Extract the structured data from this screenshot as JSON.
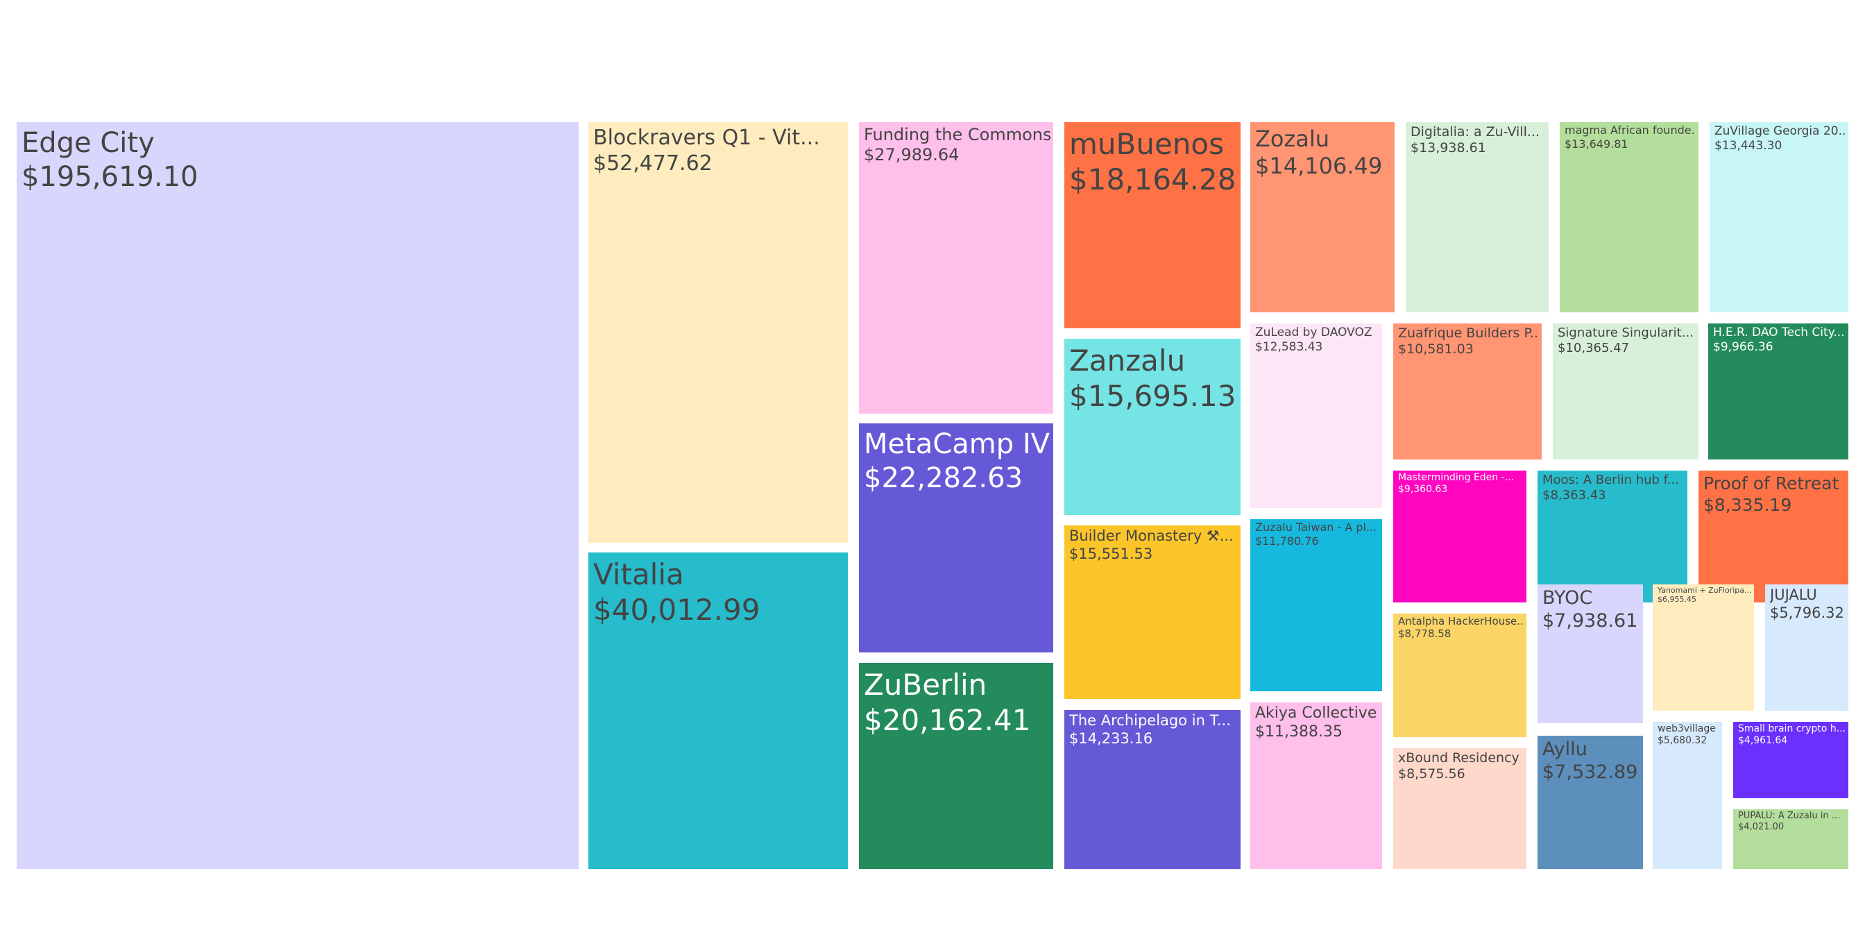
{
  "chart_data": {
    "type": "treemap",
    "title": "",
    "value_format": "currency-usd",
    "items": [
      {
        "name": "Edge City",
        "value": 195619.1,
        "value_label": "$195,619.10",
        "color": "#d8d6fc",
        "text_color": "#444444"
      },
      {
        "name": "Blockravers Q1 - Vit...",
        "value": 52477.62,
        "value_label": "$52,477.62",
        "color": "#feecbf",
        "text_color": "#444444"
      },
      {
        "name": "Vitalia",
        "value": 40012.99,
        "value_label": "$40,012.99",
        "color": "#27bccc",
        "text_color": "#444444"
      },
      {
        "name": "Funding the Commons",
        "value": 27989.64,
        "value_label": "$27,989.64",
        "color": "#ffbfeb",
        "text_color": "#444444"
      },
      {
        "name": "MetaCamp IV",
        "value": 22282.63,
        "value_label": "$22,282.63",
        "color": "#6559d7",
        "text_color": "#ffffff"
      },
      {
        "name": "ZuBerlin",
        "value": 20162.41,
        "value_label": "$20,162.41",
        "color": "#248b5c",
        "text_color": "#ffffff"
      },
      {
        "name": "muBuenos",
        "value": 18164.28,
        "value_label": "$18,164.28",
        "color": "#ff7245",
        "text_color": "#444444"
      },
      {
        "name": "Zanzalu",
        "value": 15695.13,
        "value_label": "$15,695.13",
        "color": "#75e4e4",
        "text_color": "#444444"
      },
      {
        "name": "Builder Monastery ⚒...",
        "value": 15551.53,
        "value_label": "$15,551.53",
        "color": "#fbc52a",
        "text_color": "#444444"
      },
      {
        "name": "The Archipelago in T...",
        "value": 14233.16,
        "value_label": "$14,233.16",
        "color": "#6559d7",
        "text_color": "#ffffff"
      },
      {
        "name": "Zozalu",
        "value": 14106.49,
        "value_label": "$14,106.49",
        "color": "#ff9573",
        "text_color": "#444444"
      },
      {
        "name": "Digitalia: a Zu-Vill...",
        "value": 13938.61,
        "value_label": "$13,938.61",
        "color": "#d8efd9",
        "text_color": "#444444"
      },
      {
        "name": "magma African founde...",
        "value": 13649.81,
        "value_label": "$13,649.81",
        "color": "#b4de9b",
        "text_color": "#444444"
      },
      {
        "name": "ZuVillage Georgia 20...",
        "value": 13443.3,
        "value_label": "$13,443.30",
        "color": "#c8f6f6",
        "text_color": "#444444"
      },
      {
        "name": "ZuLead by DAOVOZ",
        "value": 12583.43,
        "value_label": "$12,583.43",
        "color": "#fde7f7",
        "text_color": "#444444"
      },
      {
        "name": "Zuzalu Taiwan - A pl...",
        "value": 11780.76,
        "value_label": "$11,780.76",
        "color": "#17b8dd",
        "text_color": "#444444"
      },
      {
        "name": "Akiya Collective",
        "value": 11388.35,
        "value_label": "$11,388.35",
        "color": "#ffbfeb",
        "text_color": "#444444"
      },
      {
        "name": "Zuafrique Builders P...",
        "value": 10581.03,
        "value_label": "$10,581.03",
        "color": "#ff9573",
        "text_color": "#444444"
      },
      {
        "name": "Signature Singularit...",
        "value": 10365.47,
        "value_label": "$10,365.47",
        "color": "#d8efd9",
        "text_color": "#444444"
      },
      {
        "name": "H.E.R. DAO Tech City...",
        "value": 9966.36,
        "value_label": "$9,966.36",
        "color": "#248b5c",
        "text_color": "#ffffff"
      },
      {
        "name": "Masterminding Eden -...",
        "value": 9360.63,
        "value_label": "$9,360.63",
        "color": "#ff05c0",
        "text_color": "#ffffff"
      },
      {
        "name": "Moos: A Berlin hub f...",
        "value": 8363.43,
        "value_label": "$8,363.43",
        "color": "#27bccc",
        "text_color": "#444444"
      },
      {
        "name": "Proof of Retreat",
        "value": 8335.19,
        "value_label": "$8,335.19",
        "color": "#ff7245",
        "text_color": "#444444"
      },
      {
        "name": "Antalpha HackerHouse...",
        "value": 8778.58,
        "value_label": "$8,778.58",
        "color": "#fbd566",
        "text_color": "#444444"
      },
      {
        "name": "xBound Residency",
        "value": 8575.56,
        "value_label": "$8,575.56",
        "color": "#ffd8cc",
        "text_color": "#444444"
      },
      {
        "name": "BYOC",
        "value": 7938.61,
        "value_label": "$7,938.61",
        "color": "#d8d6fc",
        "text_color": "#444444"
      },
      {
        "name": "Ayllu",
        "value": 7532.89,
        "value_label": "$7,532.89",
        "color": "#5c8fbb",
        "text_color": "#444444"
      },
      {
        "name": "Yanomami + ZuFloripa...",
        "value": 6955.45,
        "value_label": "$6,955.45",
        "color": "#feecbf",
        "text_color": "#444444"
      },
      {
        "name": "JUJALU",
        "value": 5796.32,
        "value_label": "$5,796.32",
        "color": "#d7e9fc",
        "text_color": "#444444"
      },
      {
        "name": "web3village",
        "value": 5680.32,
        "value_label": "$5,680.32",
        "color": "#d7e9fc",
        "text_color": "#444444"
      },
      {
        "name": "Small brain crypto h...",
        "value": 4961.64,
        "value_label": "$4,961.64",
        "color": "#6b30fc",
        "text_color": "#ffffff"
      },
      {
        "name": "PUPALU: A Zuzalu in ...",
        "value": 4021.0,
        "value_label": "$4,021.00",
        "color": "#b4de9b",
        "text_color": "#444444"
      }
    ]
  }
}
